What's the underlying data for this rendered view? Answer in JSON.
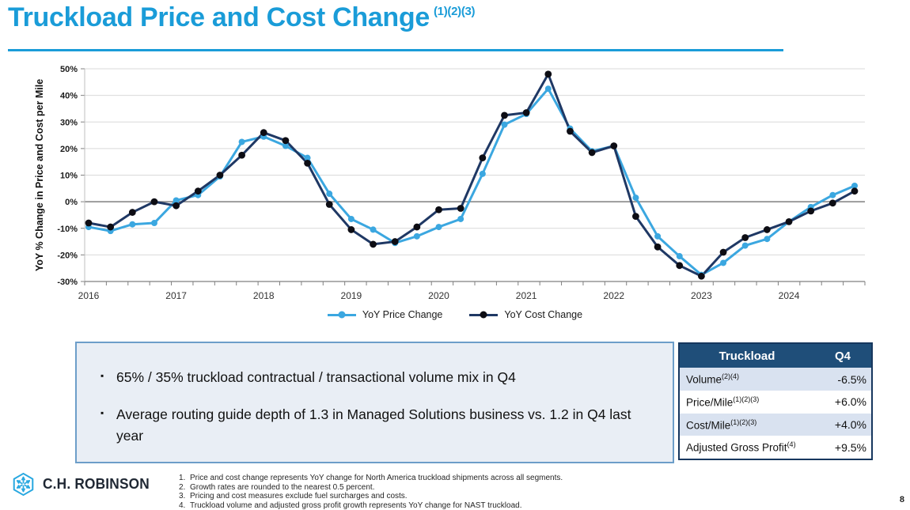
{
  "header": {
    "title": "Truckload Price and Cost Change",
    "superscript": "(1)(2)(3)",
    "accent_color": "#1A9CD8"
  },
  "chart_data": {
    "type": "line",
    "title": "",
    "xlabel": "",
    "ylabel": "YoY % Change in Price and Cost per Mile",
    "ylim": [
      -30,
      50
    ],
    "ytick_step": 10,
    "ytick_suffix": "%",
    "grid": true,
    "legend_position": "bottom",
    "grid_color": "#D9D9D9",
    "zero_line_color": "#7F7F7F",
    "x_year_labels": [
      "2016",
      "2017",
      "2018",
      "2019",
      "2020",
      "2021",
      "2022",
      "2023",
      "2024"
    ],
    "quarters": [
      "2016 Q1",
      "2016 Q2",
      "2016 Q3",
      "2016 Q4",
      "2017 Q1",
      "2017 Q2",
      "2017 Q3",
      "2017 Q4",
      "2018 Q1",
      "2018 Q2",
      "2018 Q3",
      "2018 Q4",
      "2019 Q1",
      "2019 Q2",
      "2019 Q3",
      "2019 Q4",
      "2020 Q1",
      "2020 Q2",
      "2020 Q3",
      "2020 Q4",
      "2021 Q1",
      "2021 Q2",
      "2021 Q3",
      "2021 Q4",
      "2022 Q1",
      "2022 Q2",
      "2022 Q3",
      "2022 Q4",
      "2023 Q1",
      "2023 Q2",
      "2023 Q3",
      "2023 Q4",
      "2024 Q1",
      "2024 Q2",
      "2024 Q3",
      "2024 Q4"
    ],
    "series": [
      {
        "name": "YoY Price Change",
        "color": "#3BA7E0",
        "marker_color": "#3BA7E0",
        "values": [
          -9.5,
          -11,
          -8.5,
          -8,
          0.5,
          2.5,
          9.5,
          22.5,
          24.5,
          21,
          16.5,
          3,
          -6.5,
          -10.5,
          -15.5,
          -13,
          -9.5,
          -6.5,
          10.5,
          29,
          33,
          42.5,
          27.5,
          19,
          21,
          1.5,
          -13,
          -20.5,
          -27.5,
          -23,
          -16.5,
          -14,
          -7.5,
          -2,
          2.5,
          6
        ]
      },
      {
        "name": "YoY Cost Change",
        "color": "#1F3864",
        "marker_color": "#0D0D14",
        "values": [
          -8,
          -9.5,
          -4,
          0,
          -1.5,
          4,
          10,
          17.5,
          26,
          23,
          14.5,
          -1,
          -10.5,
          -16,
          -15,
          -9.5,
          -3,
          -2.5,
          16.5,
          32.5,
          33.5,
          48,
          26.5,
          18.5,
          21,
          -5.5,
          -17,
          -24,
          -28,
          -19,
          -13.5,
          -10.5,
          -7.5,
          -3.5,
          -0.5,
          4
        ]
      }
    ]
  },
  "summary_box": {
    "bullets": [
      "65% / 35% truckload contractual / transactional volume mix in Q4",
      "Average routing guide depth of 1.3 in Managed Solutions business vs. 1.2 in Q4 last year"
    ]
  },
  "table": {
    "title_header": "Truckload",
    "period_header": "Q4",
    "header_bg": "#1F4E79",
    "alt_row_bg": "#D9E2F0",
    "rows": [
      {
        "label": "Volume",
        "superscript": "(2)(4)",
        "value": "-6.5%"
      },
      {
        "label": "Price/Mile",
        "superscript": "(1)(2)(3)",
        "value": "+6.0%"
      },
      {
        "label": "Cost/Mile",
        "superscript": "(1)(2)(3)",
        "value": "+4.0%"
      },
      {
        "label": "Adjusted Gross Profit",
        "superscript": "(4)",
        "value": "+9.5%"
      }
    ]
  },
  "footer": {
    "logo_text": "C.H. ROBINSON",
    "logo_color": "#29A8E0",
    "footnotes": [
      "Price and cost change represents YoY change for North America truckload shipments across all segments.",
      "Growth rates are rounded to the nearest 0.5 percent.",
      "Pricing and cost measures exclude fuel surcharges and costs.",
      "Truckload volume and adjusted gross profit growth represents YoY change for NAST truckload."
    ],
    "page_number": "8"
  }
}
